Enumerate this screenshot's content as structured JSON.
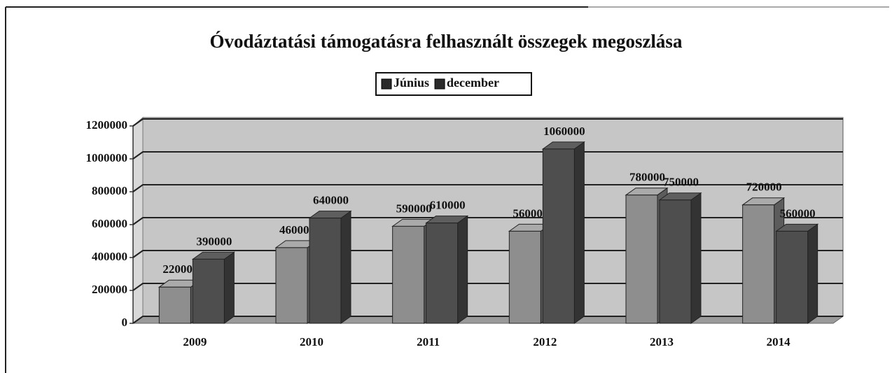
{
  "chart_data": {
    "type": "bar",
    "title": "Óvodáztatási támogatásra felhasznált összegek megoszlása",
    "categories": [
      "2009",
      "2010",
      "2011",
      "2012",
      "2013",
      "2014"
    ],
    "series": [
      {
        "name": "Június",
        "color": "#8e8e8e",
        "values": [
          220000,
          460000,
          590000,
          560000,
          780000,
          720000
        ]
      },
      {
        "name": "december",
        "color": "#4e4e4e",
        "values": [
          390000,
          640000,
          610000,
          1060000,
          750000,
          560000
        ]
      }
    ],
    "ylim": [
      0,
      1200000
    ],
    "yticks": [
      0,
      200000,
      400000,
      600000,
      800000,
      1000000,
      1200000
    ],
    "grid": true,
    "legend": "top"
  }
}
